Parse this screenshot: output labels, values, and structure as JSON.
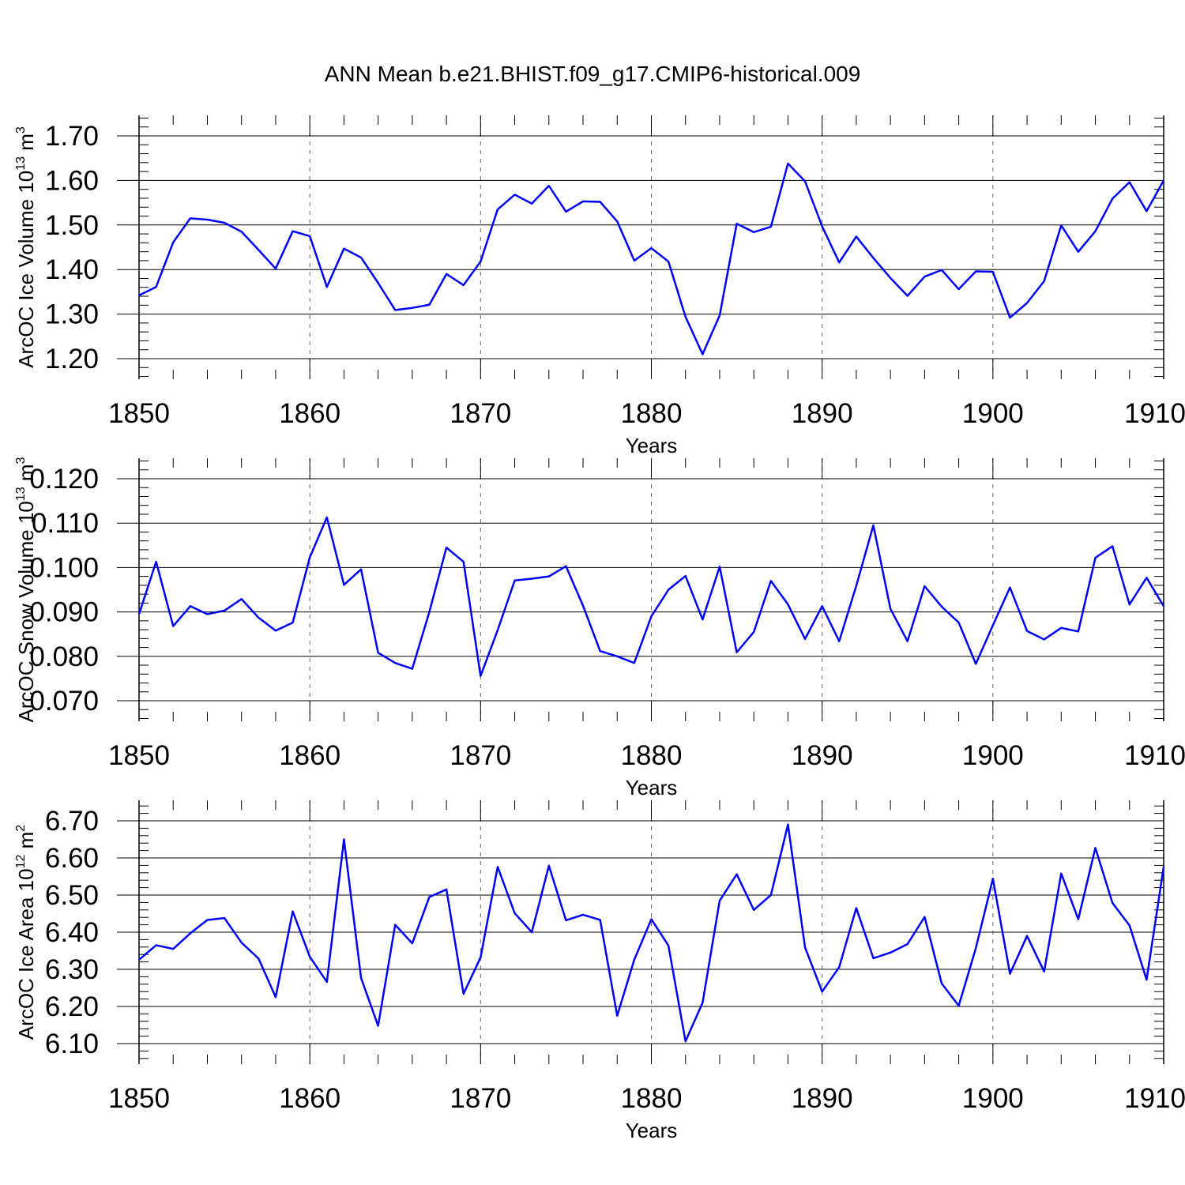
{
  "title": "ANN Mean b.e21.BHIST.f09_g17.CMIP6-historical.009",
  "colors": {
    "line": "#0000ff",
    "axis": "#000000",
    "grid": "#666666"
  },
  "chart_data": [
    {
      "type": "line",
      "ylabel": {
        "text": "ArcOC Ice Volume 10",
        "exp": "13",
        "unit": " m",
        "unit_exp": "3"
      },
      "xlabel": "Years",
      "xlim": [
        1850,
        1910
      ],
      "ylim": [
        1.15,
        1.72
      ],
      "yticks": [
        1.2,
        1.3,
        1.4,
        1.5,
        1.6,
        1.7
      ],
      "ytick_labels": [
        "1.20",
        "1.30",
        "1.40",
        "1.50",
        "1.60",
        "1.70"
      ],
      "xticks": [
        1850,
        1860,
        1870,
        1880,
        1890,
        1900,
        1910
      ],
      "xtick_labels": [
        "1850",
        "1860",
        "1870",
        "1880",
        "1890",
        "1900",
        "1910"
      ],
      "x": [
        1850,
        1851,
        1852,
        1853,
        1854,
        1855,
        1856,
        1857,
        1858,
        1859,
        1860,
        1861,
        1862,
        1863,
        1864,
        1865,
        1866,
        1867,
        1868,
        1869,
        1870,
        1871,
        1872,
        1873,
        1874,
        1875,
        1876,
        1877,
        1878,
        1879,
        1880,
        1881,
        1882,
        1883,
        1884,
        1885,
        1886,
        1887,
        1888,
        1889,
        1890,
        1891,
        1892,
        1893,
        1894,
        1895,
        1896,
        1897,
        1898,
        1899,
        1900,
        1901,
        1902,
        1903,
        1904,
        1905,
        1906,
        1907,
        1908,
        1909,
        1910
      ],
      "values": [
        1.342,
        1.361,
        1.461,
        1.515,
        1.512,
        1.505,
        1.485,
        1.444,
        1.402,
        1.486,
        1.475,
        1.361,
        1.447,
        1.427,
        1.37,
        1.309,
        1.314,
        1.321,
        1.39,
        1.365,
        1.418,
        1.535,
        1.568,
        1.548,
        1.588,
        1.53,
        1.553,
        1.552,
        1.508,
        1.42,
        1.448,
        1.418,
        1.294,
        1.21,
        1.297,
        1.503,
        1.484,
        1.496,
        1.638,
        1.598,
        1.497,
        1.416,
        1.474,
        1.426,
        1.381,
        1.341,
        1.384,
        1.399,
        1.356,
        1.396,
        1.395,
        1.292,
        1.325,
        1.374,
        1.499,
        1.44,
        1.486,
        1.559,
        1.596,
        1.531,
        1.6
      ]
    },
    {
      "type": "line",
      "ylabel": {
        "text": "ArcOC Snow Volume 10",
        "exp": "13",
        "unit": " m",
        "unit_exp": "3"
      },
      "xlabel": "Years",
      "xlim": [
        1850,
        1910
      ],
      "ylim": [
        0.065,
        0.1245
      ],
      "yticks": [
        0.07,
        0.08,
        0.09,
        0.1,
        0.11,
        0.12
      ],
      "ytick_labels": [
        "0.070",
        "0.080",
        "0.090",
        "0.100",
        "0.110",
        "0.120"
      ],
      "xticks": [
        1850,
        1860,
        1870,
        1880,
        1890,
        1900,
        1910
      ],
      "xtick_labels": [
        "1850",
        "1860",
        "1870",
        "1880",
        "1890",
        "1900",
        "1910"
      ],
      "x": [
        1850,
        1851,
        1852,
        1853,
        1854,
        1855,
        1856,
        1857,
        1858,
        1859,
        1860,
        1861,
        1862,
        1863,
        1864,
        1865,
        1866,
        1867,
        1868,
        1869,
        1870,
        1871,
        1872,
        1873,
        1874,
        1875,
        1876,
        1877,
        1878,
        1879,
        1880,
        1881,
        1882,
        1883,
        1884,
        1885,
        1886,
        1887,
        1888,
        1889,
        1890,
        1891,
        1892,
        1893,
        1894,
        1895,
        1896,
        1897,
        1898,
        1899,
        1900,
        1901,
        1902,
        1903,
        1904,
        1905,
        1906,
        1907,
        1908,
        1909,
        1910
      ],
      "values": [
        0.0895,
        0.1013,
        0.0868,
        0.0913,
        0.0895,
        0.0903,
        0.0929,
        0.0887,
        0.0858,
        0.0876,
        0.1023,
        0.1113,
        0.0961,
        0.0996,
        0.0808,
        0.0785,
        0.0772,
        0.09,
        0.1045,
        0.1013,
        0.0756,
        0.0859,
        0.0971,
        0.0975,
        0.098,
        0.1003,
        0.0914,
        0.0812,
        0.08,
        0.0785,
        0.089,
        0.095,
        0.0981,
        0.0883,
        0.1002,
        0.0809,
        0.0855,
        0.097,
        0.0917,
        0.0839,
        0.0913,
        0.0834,
        0.0959,
        0.1095,
        0.0907,
        0.0834,
        0.0958,
        0.0912,
        0.0876,
        0.0783,
        0.087,
        0.0955,
        0.0857,
        0.0838,
        0.0864,
        0.0856,
        0.1022,
        0.1048,
        0.0917,
        0.0977,
        0.0913
      ]
    },
    {
      "type": "line",
      "ylabel": {
        "text": "ArcOC Ice Area 10",
        "exp": "12",
        "unit": " m",
        "unit_exp": "2"
      },
      "xlabel": "Years",
      "xlim": [
        1850,
        1910
      ],
      "ylim": [
        6.06,
        6.755
      ],
      "yticks": [
        6.1,
        6.2,
        6.3,
        6.4,
        6.5,
        6.6,
        6.7
      ],
      "ytick_labels": [
        "6.10",
        "6.20",
        "6.30",
        "6.40",
        "6.50",
        "6.60",
        "6.70"
      ],
      "xticks": [
        1850,
        1860,
        1870,
        1880,
        1890,
        1900,
        1910
      ],
      "xtick_labels": [
        "1850",
        "1860",
        "1870",
        "1880",
        "1890",
        "1900",
        "1910"
      ],
      "x": [
        1850,
        1851,
        1852,
        1853,
        1854,
        1855,
        1856,
        1857,
        1858,
        1859,
        1860,
        1861,
        1862,
        1863,
        1864,
        1865,
        1866,
        1867,
        1868,
        1869,
        1870,
        1871,
        1872,
        1873,
        1874,
        1875,
        1876,
        1877,
        1878,
        1879,
        1880,
        1881,
        1882,
        1883,
        1884,
        1885,
        1886,
        1887,
        1888,
        1889,
        1890,
        1891,
        1892,
        1893,
        1894,
        1895,
        1896,
        1897,
        1898,
        1899,
        1900,
        1901,
        1902,
        1903,
        1904,
        1905,
        1906,
        1907,
        1908,
        1909,
        1910
      ],
      "values": [
        6.326,
        6.365,
        6.355,
        6.397,
        6.433,
        6.438,
        6.372,
        6.329,
        6.225,
        6.456,
        6.334,
        6.266,
        6.65,
        6.277,
        6.148,
        6.42,
        6.37,
        6.495,
        6.515,
        6.234,
        6.332,
        6.576,
        6.451,
        6.4,
        6.579,
        6.432,
        6.447,
        6.433,
        6.175,
        6.326,
        6.435,
        6.364,
        6.106,
        6.21,
        6.485,
        6.556,
        6.46,
        6.5,
        6.69,
        6.359,
        6.24,
        6.306,
        6.465,
        6.33,
        6.345,
        6.368,
        6.441,
        6.262,
        6.202,
        6.357,
        6.544,
        6.288,
        6.39,
        6.294,
        6.558,
        6.435,
        6.627,
        6.479,
        6.418,
        6.272,
        6.576
      ]
    }
  ]
}
